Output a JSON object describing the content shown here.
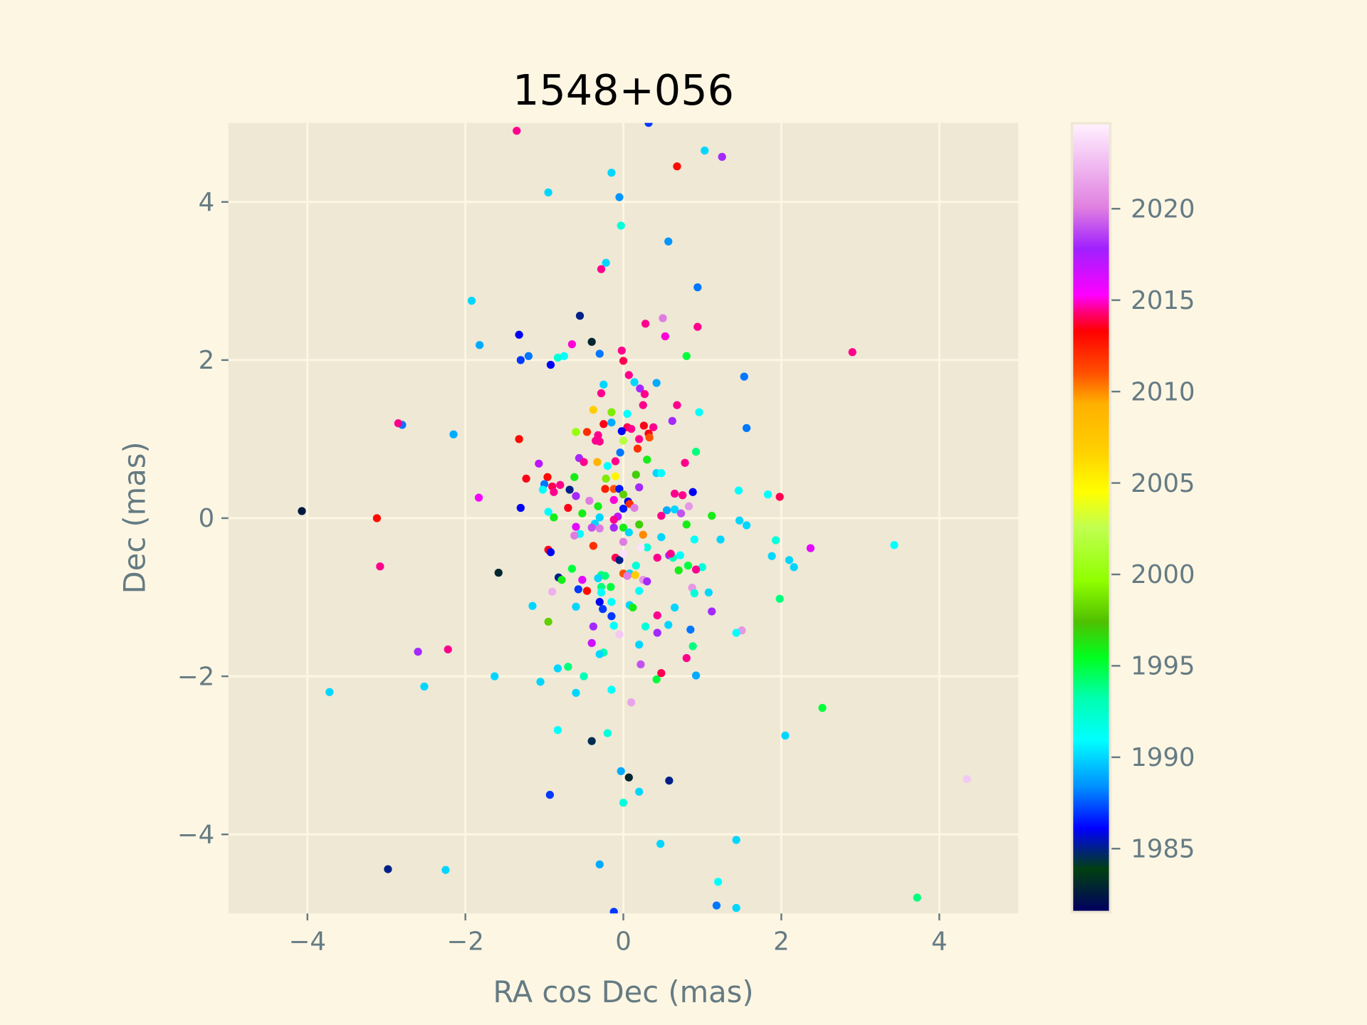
{
  "chart_data": {
    "type": "scatter",
    "title": "1548+056",
    "xlabel": "RA cos Dec (mas)",
    "ylabel": "Dec (mas)",
    "xlim": [
      -5,
      5
    ],
    "ylim": [
      -5,
      5
    ],
    "xticks": [
      -4,
      -2,
      0,
      2,
      4
    ],
    "yticks": [
      -4,
      -2,
      0,
      2,
      4
    ],
    "grid": true,
    "colorbar": {
      "label": "",
      "range": [
        1981.6,
        2024.6
      ],
      "ticks": [
        1985,
        1990,
        1995,
        2000,
        2005,
        2010,
        2015,
        2020
      ],
      "colormap": "gist_ncar-like"
    },
    "colors": {
      "background": "#fdf6e3",
      "plot_background": "#eee8d5",
      "grid": "#fdf6e3",
      "tick_text": "#657b83",
      "title": "#000000"
    },
    "points_format": [
      "x",
      "y",
      "epoch"
    ],
    "points": [
      [
        -1.35,
        4.9,
        2014.5
      ],
      [
        0.32,
        5.0,
        1987
      ],
      [
        1.03,
        4.65,
        1990
      ],
      [
        1.25,
        4.57,
        2018
      ],
      [
        0.68,
        4.45,
        2013
      ],
      [
        -0.15,
        4.37,
        1990
      ],
      [
        -0.95,
        4.12,
        1990
      ],
      [
        -0.05,
        4.06,
        1988.5
      ],
      [
        -0.03,
        3.7,
        1992
      ],
      [
        0.57,
        3.5,
        1988.5
      ],
      [
        -0.22,
        3.23,
        1990
      ],
      [
        -0.28,
        3.15,
        2014.5
      ],
      [
        0.94,
        2.92,
        1988
      ],
      [
        -1.92,
        2.75,
        1990
      ],
      [
        -0.55,
        2.56,
        1985
      ],
      [
        0.5,
        2.53,
        2020
      ],
      [
        0.28,
        2.46,
        2014.5
      ],
      [
        0.94,
        2.42,
        2014.5
      ],
      [
        -0.4,
        2.23,
        1983
      ],
      [
        0.53,
        2.3,
        2015
      ],
      [
        -1.82,
        2.19,
        1989
      ],
      [
        -0.65,
        2.2,
        2015
      ],
      [
        -1.32,
        2.32,
        1986
      ],
      [
        2.9,
        2.1,
        2014.5
      ],
      [
        -0.02,
        2.12,
        2014.5
      ],
      [
        -0.3,
        2.08,
        1988
      ],
      [
        0.8,
        2.05,
        1995
      ],
      [
        -1.2,
        2.05,
        1988
      ],
      [
        -0.75,
        2.05,
        1991
      ],
      [
        -0.83,
        2.03,
        1992
      ],
      [
        -1.3,
        2.0,
        1987
      ],
      [
        -0.92,
        1.94,
        1986
      ],
      [
        0.0,
        1.99,
        2014
      ],
      [
        1.53,
        1.79,
        1988
      ],
      [
        0.07,
        1.81,
        2014.5
      ],
      [
        0.14,
        1.72,
        1990
      ],
      [
        0.42,
        1.71,
        1989
      ],
      [
        -0.25,
        1.69,
        1990
      ],
      [
        0.21,
        1.64,
        2018
      ],
      [
        0.27,
        1.57,
        2014.5
      ],
      [
        -0.28,
        1.58,
        2014.5
      ],
      [
        0.25,
        1.43,
        2014.5
      ],
      [
        0.68,
        1.43,
        2014.5
      ],
      [
        0.96,
        1.34,
        1991
      ],
      [
        -0.38,
        1.37,
        2007
      ],
      [
        -0.15,
        1.34,
        1999
      ],
      [
        0.05,
        1.32,
        1991
      ],
      [
        0.62,
        1.23,
        2018
      ],
      [
        -0.25,
        1.19,
        2013.5
      ],
      [
        -0.15,
        1.21,
        1989
      ],
      [
        1.56,
        1.14,
        1988
      ],
      [
        -2.15,
        1.06,
        1989
      ],
      [
        -2.8,
        1.18,
        1988
      ],
      [
        -2.85,
        1.2,
        2014.5
      ],
      [
        -0.6,
        1.09,
        2000
      ],
      [
        -0.46,
        1.09,
        2012
      ],
      [
        0.05,
        1.15,
        2014
      ],
      [
        0.1,
        1.13,
        2014.5
      ],
      [
        0.26,
        1.17,
        2013.5
      ],
      [
        0.38,
        1.15,
        2014.5
      ],
      [
        0.32,
        1.07,
        2013.5
      ],
      [
        -0.02,
        1.1,
        1986
      ],
      [
        -0.32,
        1.05,
        2014.5
      ],
      [
        0.33,
        1.02,
        2011
      ],
      [
        -0.35,
        0.98,
        2014.5
      ],
      [
        0.0,
        0.98,
        2002
      ],
      [
        0.2,
        1.0,
        2014.5
      ],
      [
        -0.3,
        0.97,
        2014.5
      ],
      [
        0.18,
        0.88,
        2012
      ],
      [
        -1.32,
        1.0,
        2013
      ],
      [
        0.92,
        0.84,
        1994
      ],
      [
        -0.04,
        0.83,
        1988
      ],
      [
        -0.56,
        0.76,
        2018
      ],
      [
        0.3,
        0.74,
        1996
      ],
      [
        -0.33,
        0.71,
        2009
      ],
      [
        -0.5,
        0.71,
        2014.5
      ],
      [
        -0.1,
        0.72,
        2014.5
      ],
      [
        -1.07,
        0.69,
        2017
      ],
      [
        0.78,
        0.7,
        2014.5
      ],
      [
        -0.2,
        0.66,
        1991
      ],
      [
        0.42,
        0.57,
        1990
      ],
      [
        0.48,
        0.57,
        1991
      ],
      [
        0.16,
        0.55,
        1997
      ],
      [
        -0.1,
        0.53,
        2005
      ],
      [
        -0.96,
        0.52,
        2013
      ],
      [
        -0.62,
        0.52,
        1996
      ],
      [
        -0.22,
        0.5,
        1999
      ],
      [
        -1.23,
        0.5,
        2013.5
      ],
      [
        -0.9,
        0.4,
        2014
      ],
      [
        -0.8,
        0.42,
        2014.5
      ],
      [
        -1.0,
        0.43,
        1988
      ],
      [
        -0.68,
        0.36,
        1985
      ],
      [
        -0.23,
        0.37,
        2012.5
      ],
      [
        -0.12,
        0.37,
        2011
      ],
      [
        -0.05,
        0.37,
        1986.5
      ],
      [
        0.2,
        0.39,
        2018
      ],
      [
        -1.02,
        0.36,
        1991
      ],
      [
        -0.88,
        0.33,
        2014.5
      ],
      [
        0.88,
        0.33,
        1986
      ],
      [
        1.46,
        0.35,
        1991
      ],
      [
        0.65,
        0.31,
        2014.5
      ],
      [
        0.75,
        0.29,
        2014.5
      ],
      [
        1.83,
        0.3,
        1991
      ],
      [
        1.98,
        0.27,
        2014
      ],
      [
        -0.6,
        0.28,
        2018
      ],
      [
        -1.83,
        0.26,
        2015.5
      ],
      [
        0.0,
        0.3,
        1998
      ],
      [
        0.06,
        0.21,
        1986
      ],
      [
        0.08,
        0.18,
        2012
      ],
      [
        -0.43,
        0.22,
        2020
      ],
      [
        -0.12,
        0.23,
        2015
      ],
      [
        0.83,
        0.15,
        2021
      ],
      [
        -0.32,
        0.15,
        1996
      ],
      [
        -1.3,
        0.13,
        1986
      ],
      [
        -0.7,
        0.13,
        2013.5
      ],
      [
        0.14,
        0.13,
        2020
      ],
      [
        0.0,
        0.12,
        1986.5
      ],
      [
        -0.95,
        0.08,
        1991
      ],
      [
        -0.52,
        0.06,
        1996
      ],
      [
        0.65,
        0.11,
        1990
      ],
      [
        0.55,
        0.1,
        1989
      ],
      [
        0.73,
        0.06,
        2019
      ],
      [
        -4.07,
        0.09,
        1982.5
      ],
      [
        -3.12,
        0.0,
        2013
      ],
      [
        1.12,
        0.03,
        1996
      ],
      [
        0.48,
        0.03,
        2014.5
      ],
      [
        -0.3,
        0.01,
        1990
      ],
      [
        -0.07,
        0.02,
        2017
      ],
      [
        -0.12,
        -0.02,
        2014.5
      ],
      [
        -0.88,
        0.01,
        1996
      ],
      [
        1.47,
        -0.03,
        1990
      ],
      [
        1.56,
        -0.09,
        1990
      ],
      [
        0.8,
        -0.08,
        1996
      ],
      [
        0.2,
        -0.08,
        1997
      ],
      [
        -0.36,
        -0.07,
        1990
      ],
      [
        -0.3,
        -0.13,
        2020
      ],
      [
        -0.4,
        -0.12,
        2019
      ],
      [
        -0.6,
        -0.11,
        2016
      ],
      [
        -0.12,
        -0.12,
        2018
      ],
      [
        0.0,
        -0.12,
        1996
      ],
      [
        0.07,
        -0.18,
        1990
      ],
      [
        -0.55,
        -0.2,
        1991
      ],
      [
        -0.62,
        -0.22,
        2020
      ],
      [
        0.25,
        -0.21,
        2010
      ],
      [
        0.48,
        -0.24,
        1990
      ],
      [
        0.9,
        -0.27,
        1991
      ],
      [
        1.23,
        -0.27,
        1990
      ],
      [
        1.93,
        -0.28,
        1992
      ],
      [
        2.37,
        -0.38,
        2016
      ],
      [
        3.43,
        -0.34,
        1991
      ],
      [
        0.0,
        -0.3,
        2020
      ],
      [
        -0.38,
        -0.35,
        2012
      ],
      [
        0.3,
        -0.37,
        1992
      ],
      [
        0.22,
        -0.37,
        2024
      ],
      [
        0.43,
        -0.5,
        2014.5
      ],
      [
        -0.95,
        -0.4,
        2013.5
      ],
      [
        -0.92,
        -0.43,
        1986
      ],
      [
        0.58,
        -0.47,
        2018
      ],
      [
        0.63,
        -0.5,
        1993
      ],
      [
        0.72,
        -0.47,
        1991
      ],
      [
        1.88,
        -0.48,
        1990
      ],
      [
        2.1,
        -0.53,
        1990
      ],
      [
        -0.1,
        -0.5,
        2014
      ],
      [
        -0.05,
        -0.53,
        1985
      ],
      [
        0.0,
        -0.45,
        2024
      ],
      [
        0.6,
        -0.45,
        2014.5
      ],
      [
        0.16,
        -0.6,
        1992
      ],
      [
        0.82,
        -0.6,
        1995
      ],
      [
        0.7,
        -0.66,
        1996
      ],
      [
        1.0,
        -0.62,
        1992
      ],
      [
        0.92,
        -0.65,
        2014.5
      ],
      [
        2.16,
        -0.62,
        1990
      ],
      [
        -3.08,
        -0.61,
        2014.5
      ],
      [
        -1.58,
        -0.69,
        1983
      ],
      [
        -0.65,
        -0.64,
        1995
      ],
      [
        0.0,
        -0.7,
        2011
      ],
      [
        0.08,
        -0.7,
        1990
      ],
      [
        0.15,
        -0.72,
        2007
      ],
      [
        0.25,
        -0.78,
        2021
      ],
      [
        0.3,
        -0.8,
        2018
      ],
      [
        -0.28,
        -0.72,
        1994
      ],
      [
        -0.23,
        -0.73,
        1994
      ],
      [
        -0.32,
        -0.76,
        1990
      ],
      [
        -0.52,
        -0.78,
        2016
      ],
      [
        -0.82,
        -0.75,
        1985
      ],
      [
        -0.78,
        -0.78,
        1996
      ],
      [
        0.05,
        -0.73,
        2020
      ],
      [
        -0.9,
        -0.93,
        2022
      ],
      [
        -0.57,
        -0.9,
        1987
      ],
      [
        -0.46,
        -0.92,
        2013
      ],
      [
        -0.28,
        -0.87,
        1994
      ],
      [
        -0.28,
        -0.94,
        1991
      ],
      [
        -0.16,
        -0.87,
        1995
      ],
      [
        0.2,
        -0.92,
        1991
      ],
      [
        0.87,
        -0.88,
        2021
      ],
      [
        0.9,
        -0.95,
        1992
      ],
      [
        1.08,
        -0.94,
        1990
      ],
      [
        -0.6,
        -1.12,
        1990
      ],
      [
        -0.15,
        -1.06,
        1991
      ],
      [
        -0.3,
        -1.06,
        1986
      ],
      [
        0.08,
        -1.1,
        1990
      ],
      [
        0.12,
        -1.13,
        1996
      ],
      [
        -1.15,
        -1.11,
        1990
      ],
      [
        -0.95,
        -1.31,
        1998
      ],
      [
        1.98,
        -1.02,
        1994
      ],
      [
        0.65,
        -1.13,
        1990
      ],
      [
        1.12,
        -1.18,
        2018
      ],
      [
        -0.26,
        -1.15,
        1987
      ],
      [
        -0.15,
        -1.24,
        1987
      ],
      [
        0.43,
        -1.23,
        2014.5
      ],
      [
        0.85,
        -1.41,
        1988
      ],
      [
        -0.38,
        -1.37,
        2018
      ],
      [
        -0.12,
        -1.36,
        1991
      ],
      [
        0.28,
        -1.37,
        1992
      ],
      [
        0.57,
        -1.35,
        1990
      ],
      [
        0.43,
        -1.45,
        2018
      ],
      [
        1.5,
        -1.42,
        2021
      ],
      [
        1.43,
        -1.45,
        1991
      ],
      [
        -0.05,
        -1.47,
        2023
      ],
      [
        -0.4,
        -1.58,
        2016.5
      ],
      [
        0.2,
        -1.6,
        1990
      ],
      [
        0.88,
        -1.62,
        1994
      ],
      [
        -0.25,
        -1.7,
        1993
      ],
      [
        -0.3,
        -1.72,
        1990
      ],
      [
        -2.6,
        -1.69,
        2018
      ],
      [
        -2.22,
        -1.66,
        2014.5
      ],
      [
        0.8,
        -1.77,
        2014.5
      ],
      [
        0.22,
        -1.85,
        2019
      ],
      [
        -0.7,
        -1.88,
        1994
      ],
      [
        -0.83,
        -1.9,
        1990
      ],
      [
        0.48,
        -1.96,
        2014
      ],
      [
        -1.63,
        -2.0,
        1990
      ],
      [
        0.92,
        -1.99,
        1989
      ],
      [
        -0.5,
        -2.0,
        1993
      ],
      [
        0.42,
        -2.04,
        1995
      ],
      [
        -1.05,
        -2.07,
        1990
      ],
      [
        -2.52,
        -2.13,
        1990
      ],
      [
        -3.72,
        -2.2,
        1990
      ],
      [
        -0.6,
        -2.21,
        1990
      ],
      [
        -0.15,
        -2.17,
        1991
      ],
      [
        0.1,
        -2.33,
        2021.5
      ],
      [
        2.52,
        -2.4,
        1995
      ],
      [
        -0.83,
        -2.68,
        1991
      ],
      [
        -0.2,
        -2.72,
        1992
      ],
      [
        2.05,
        -2.75,
        1990
      ],
      [
        -0.4,
        -2.82,
        1984.5
      ],
      [
        -0.03,
        -3.2,
        1989
      ],
      [
        0.07,
        -3.28,
        1983
      ],
      [
        0.58,
        -3.32,
        1985
      ],
      [
        4.35,
        -3.3,
        2023
      ],
      [
        -0.93,
        -3.5,
        1987
      ],
      [
        0.2,
        -3.46,
        1990
      ],
      [
        0.0,
        -3.6,
        1992
      ],
      [
        0.47,
        -4.12,
        1990
      ],
      [
        1.43,
        -4.07,
        1990
      ],
      [
        -2.98,
        -4.44,
        1985
      ],
      [
        -2.25,
        -4.45,
        1990
      ],
      [
        -0.3,
        -4.38,
        1989
      ],
      [
        3.72,
        -4.8,
        1994
      ],
      [
        1.2,
        -4.6,
        1991
      ],
      [
        1.18,
        -4.9,
        1988
      ],
      [
        1.43,
        -4.93,
        1990
      ],
      [
        -0.12,
        -4.98,
        1987
      ]
    ]
  }
}
